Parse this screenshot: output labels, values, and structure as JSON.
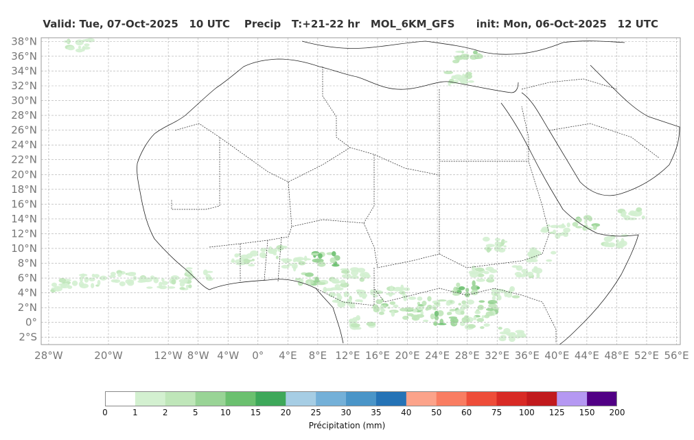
{
  "header": {
    "valid": "Valid: Tue, 07-Oct-2025   10 UTC",
    "field": "Precip",
    "forecast_range": "T:+21-22 hr",
    "model": "MOL_6KM_GFS",
    "init": "init: Mon, 06-Oct-2025   12 UTC"
  },
  "map": {
    "lon_labels": [
      "28°W",
      "20°W",
      "12°W",
      "8°W",
      "4°W",
      "0°",
      "4°E",
      "8°E",
      "12°E",
      "16°E",
      "20°E",
      "24°E",
      "28°E",
      "32°E",
      "36°E",
      "40°E",
      "44°E",
      "48°E",
      "52°E",
      "56°E"
    ],
    "lon_values": [
      -28,
      -20,
      -12,
      -8,
      -4,
      0,
      4,
      8,
      12,
      16,
      20,
      24,
      28,
      32,
      36,
      40,
      44,
      48,
      52,
      56
    ],
    "lat_labels": [
      "38°N",
      "36°N",
      "34°N",
      "32°N",
      "30°N",
      "28°N",
      "26°N",
      "24°N",
      "22°N",
      "20°N",
      "18°N",
      "16°N",
      "14°N",
      "12°N",
      "10°N",
      "8°N",
      "6°N",
      "4°N",
      "2°N",
      "0°",
      "2°S"
    ],
    "lat_values": [
      38,
      36,
      34,
      32,
      30,
      28,
      26,
      24,
      22,
      20,
      18,
      16,
      14,
      12,
      10,
      8,
      6,
      4,
      2,
      0,
      -2
    ],
    "extent": {
      "lon_min": -29,
      "lon_max": 56.5,
      "lat_min": -3,
      "lat_max": 38.5
    },
    "gridlines": true,
    "precip_patches": [
      {
        "lon": -26,
        "lat": 5.0,
        "level": 1
      },
      {
        "lon": -22,
        "lat": 5.6,
        "level": 1
      },
      {
        "lon": -18,
        "lat": 6.0,
        "level": 1
      },
      {
        "lon": -14,
        "lat": 5.5,
        "level": 1
      },
      {
        "lon": -10,
        "lat": 5.2,
        "level": 1
      },
      {
        "lon": -8,
        "lat": 6.5,
        "level": 1
      },
      {
        "lon": -2,
        "lat": 8.5,
        "level": 1
      },
      {
        "lon": 2,
        "lat": 9.5,
        "level": 1
      },
      {
        "lon": 5,
        "lat": 8.0,
        "level": 1
      },
      {
        "lon": 7,
        "lat": 6.0,
        "level": 2
      },
      {
        "lon": 9,
        "lat": 8.5,
        "level": 3
      },
      {
        "lon": 10,
        "lat": 5.0,
        "level": 1
      },
      {
        "lon": 13,
        "lat": 6.5,
        "level": 1
      },
      {
        "lon": 15,
        "lat": 3.5,
        "level": 1
      },
      {
        "lon": 17,
        "lat": 2.0,
        "level": 2
      },
      {
        "lon": 19,
        "lat": 4.0,
        "level": 1
      },
      {
        "lon": 21,
        "lat": 1.0,
        "level": 2
      },
      {
        "lon": 23,
        "lat": 2.5,
        "level": 2
      },
      {
        "lon": 25,
        "lat": 0.5,
        "level": 3
      },
      {
        "lon": 27,
        "lat": 2.0,
        "level": 2
      },
      {
        "lon": 28,
        "lat": 4.5,
        "level": 3
      },
      {
        "lon": 29,
        "lat": 0.0,
        "level": 2
      },
      {
        "lon": 30,
        "lat": 6.5,
        "level": 1
      },
      {
        "lon": 31,
        "lat": 2.0,
        "level": 2
      },
      {
        "lon": 33,
        "lat": 4.0,
        "level": 1
      },
      {
        "lon": 34,
        "lat": -1.5,
        "level": 1
      },
      {
        "lon": 36,
        "lat": 7.0,
        "level": 1
      },
      {
        "lon": 32,
        "lat": 10.5,
        "level": 1
      },
      {
        "lon": 38,
        "lat": 9.0,
        "level": 1
      },
      {
        "lon": 40,
        "lat": 12.5,
        "level": 1
      },
      {
        "lon": 44,
        "lat": 13.5,
        "level": 2
      },
      {
        "lon": 48,
        "lat": 11.0,
        "level": 1
      },
      {
        "lon": 50,
        "lat": 14.5,
        "level": 1
      },
      {
        "lon": 28,
        "lat": 36.0,
        "level": 2
      },
      {
        "lon": 27,
        "lat": 33.0,
        "level": 1
      },
      {
        "lon": -24,
        "lat": 37.5,
        "level": 1
      },
      {
        "lon": 14,
        "lat": 0.0,
        "level": 1
      },
      {
        "lon": 11,
        "lat": 3.0,
        "level": 1
      }
    ]
  },
  "colorbar": {
    "label": "Précipitation (mm)",
    "ticks": [
      "0",
      "1",
      "2",
      "5",
      "10",
      "15",
      "20",
      "25",
      "30",
      "35",
      "40",
      "50",
      "60",
      "75",
      "100",
      "125",
      "150",
      "200"
    ],
    "colors": [
      "#ffffff",
      "#d3f0d0",
      "#bfe6b9",
      "#99d496",
      "#6bc06f",
      "#3ea85a",
      "#a6cde4",
      "#74b0d8",
      "#4a95c8",
      "#2573b6",
      "#fca38a",
      "#f97d62",
      "#ee4d39",
      "#d82a25",
      "#c11a1d",
      "#b598f2",
      "#510085"
    ]
  }
}
